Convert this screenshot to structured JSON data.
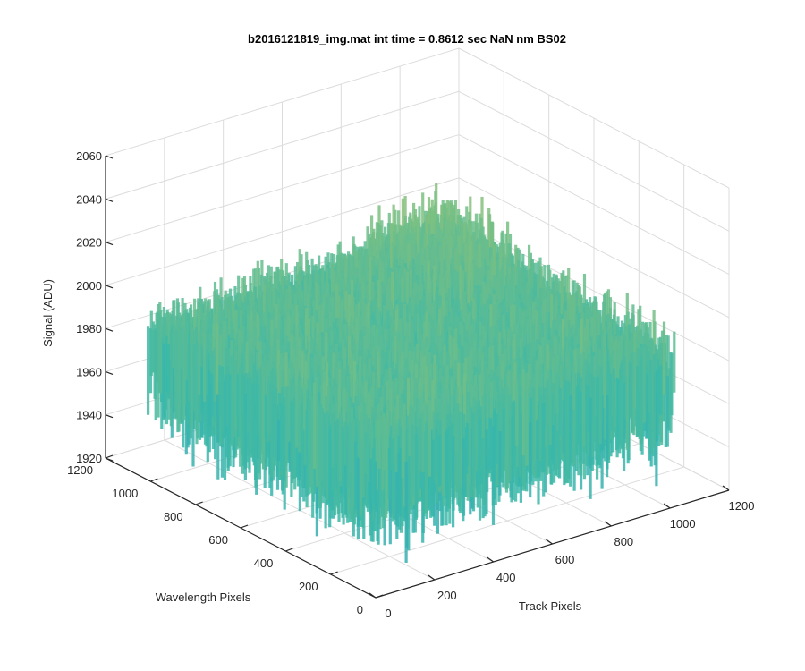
{
  "chart_data": {
    "type": "surface",
    "title": "b2016121819_img.mat int time = 0.8612 sec  NaN nm BS02",
    "xlabel": "Track Pixels",
    "ylabel": "Wavelength Pixels",
    "zlabel": "Signal (ADU)",
    "xlim": [
      0,
      1200
    ],
    "ylim": [
      0,
      1200
    ],
    "zlim": [
      1920,
      2060
    ],
    "x_ticks": [
      "0",
      "200",
      "400",
      "600",
      "800",
      "1000",
      "1200"
    ],
    "y_ticks": [
      "0",
      "200",
      "400",
      "600",
      "800",
      "1000",
      "1200"
    ],
    "z_ticks": [
      "1920",
      "1940",
      "1960",
      "1980",
      "2000",
      "2020",
      "2040",
      "2060"
    ],
    "grid": true,
    "surface": {
      "x_range": [
        0,
        1024
      ],
      "y_range": [
        0,
        1024
      ],
      "z_mean": 1992,
      "z_peak": 2050,
      "z_min": 1925,
      "colormap": "parula",
      "color_low": "#1a8fd6",
      "color_mid": "#3bb8a8",
      "color_high": "#d9c94a"
    }
  }
}
